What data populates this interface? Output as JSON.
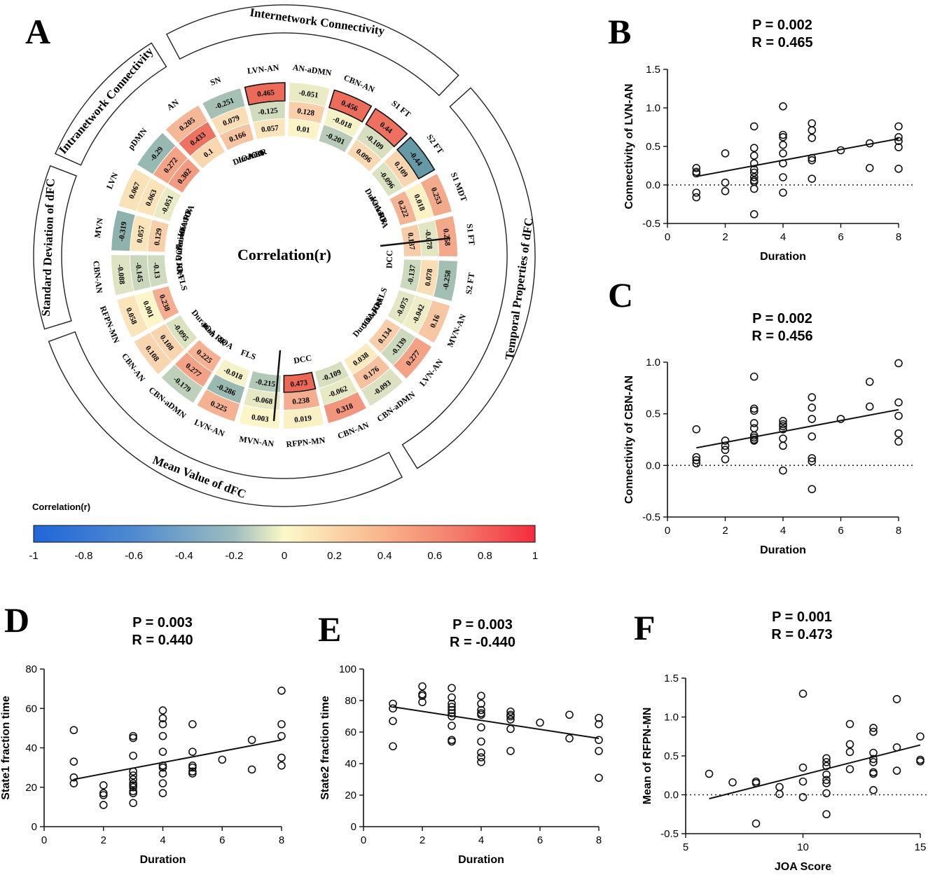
{
  "panel_a": {
    "letter": "A",
    "center_title": "Correlation(r)",
    "sectors": [
      "Internetwork Connectivity",
      "Temporal Properties of dFC",
      "Mean Value of dFC",
      "Standard Deviation of dFC",
      "Intranetwork Connectivity"
    ],
    "rows": [
      "Duration",
      "JOA RR",
      "JOA"
    ],
    "columns": [
      {
        "label": "LVN-AN",
        "values": [
          0.465,
          -0.125,
          0.057
        ]
      },
      {
        "label": "AN-aDMN",
        "values": [
          -0.051,
          0.128,
          0.01
        ]
      },
      {
        "label": "CBN-AN",
        "values": [
          0.456,
          -0.018,
          -0.201
        ]
      },
      {
        "label": "S1 FT",
        "values": [
          0.44,
          -0.109,
          0.096
        ]
      },
      {
        "label": "S2 FT",
        "values": [
          -0.44,
          0.109,
          -0.096
        ]
      },
      {
        "label": "S1 MDT",
        "values": [
          0.253,
          0.018,
          0.222
        ]
      },
      {
        "label": "S1 FT",
        "values": [
          0.258,
          -0.078,
          0.137
        ]
      },
      {
        "label": "S2 FT",
        "values": [
          -0.258,
          0.078,
          -0.137
        ]
      },
      {
        "label": "MVN-AN",
        "values": [
          0.16,
          -0.042,
          -0.075
        ]
      },
      {
        "label": "LVN-AN",
        "values": [
          0.277,
          -0.139,
          0.134
        ]
      },
      {
        "label": "CBN-aDMN",
        "values": [
          -0.093,
          0.176,
          0.038
        ]
      },
      {
        "label": "CBN-AN",
        "values": [
          0.318,
          -0.062,
          -0.109
        ]
      },
      {
        "label": "RFPN-MN",
        "values": [
          0.019,
          0.238,
          0.473
        ]
      },
      {
        "label": "MVN-AN",
        "values": [
          0.003,
          -0.068,
          -0.215
        ]
      },
      {
        "label": "LVN-AN",
        "values": [
          0.225,
          -0.286,
          -0.018
        ]
      },
      {
        "label": "CBN-aDMN",
        "values": [
          -0.179,
          0.277,
          0.225
        ]
      },
      {
        "label": "CBN-AN",
        "values": [
          0.108,
          0.108,
          -0.095
        ]
      },
      {
        "label": "RFPN-MN",
        "values": [
          0.058,
          0.001,
          0.238
        ]
      },
      {
        "label": "CBN-AN",
        "values": [
          -0.088,
          -0.145,
          -0.13
        ]
      },
      {
        "label": "MVN",
        "values": [
          -0.319,
          0.057,
          0.129
        ]
      },
      {
        "label": "LVN",
        "values": [
          0.067,
          0.063,
          -0.051
        ]
      },
      {
        "label": "pDMN",
        "values": [
          -0.29,
          0.272,
          0.302
        ]
      },
      {
        "label": "AN",
        "values": [
          0.205,
          0.433,
          0.1
        ]
      },
      {
        "label": "SN",
        "values": [
          -0.251,
          0.079,
          0.166
        ]
      }
    ],
    "inner_labels": [
      "Duration",
      "JOA RR",
      "JOA",
      "Duration",
      "JOA RR",
      "JOA",
      "DCC",
      "FLS",
      "JOA",
      "JOA RR",
      "Duration",
      "DCC",
      "FLS",
      "JOA",
      "JOA RR",
      "Duration",
      "FLS",
      "JOA",
      "JOA RR",
      "Duration",
      "Duration",
      "JOA RR",
      "JOA"
    ],
    "colorbar": {
      "title": "Correlation(r)",
      "ticks": [
        "-1",
        "-0.8",
        "-0.6",
        "-0.4",
        "-0.2",
        "0",
        "0.2",
        "0.4",
        "0.6",
        "0.8",
        "1"
      ]
    }
  },
  "chart_data": [
    {
      "panel": "B",
      "type": "scatter",
      "p_text": "P = 0.002",
      "r_text": "R = 0.465",
      "xlabel": "Duration",
      "ylabel": "Connectivity of LVN-AN",
      "xlim": [
        0,
        8
      ],
      "ylim": [
        -0.5,
        1.5
      ],
      "xticks": [
        "0",
        "2",
        "4",
        "6",
        "8"
      ],
      "yticks": [
        "-0.5",
        "0.0",
        "0.5",
        "1.0",
        "1.5"
      ],
      "x": [
        1,
        1,
        1,
        1,
        1,
        2,
        2,
        2,
        3,
        3,
        3,
        3,
        3,
        3,
        3,
        3,
        3,
        3,
        3,
        4,
        4,
        4,
        4,
        4,
        4,
        4,
        4,
        5,
        5,
        5,
        5,
        5,
        5,
        6,
        7,
        7,
        8,
        8,
        8,
        8,
        8
      ],
      "y": [
        0.22,
        0.17,
        0.15,
        -0.1,
        -0.16,
        0.41,
        0.03,
        -0.08,
        0.76,
        0.48,
        0.38,
        0.28,
        0.2,
        0.16,
        0.1,
        0.06,
        0.04,
        -0.05,
        -0.38,
        1.02,
        0.65,
        0.62,
        0.52,
        0.41,
        0.28,
        0.1,
        -0.1,
        0.8,
        0.71,
        0.61,
        0.35,
        0.32,
        0.08,
        0.45,
        0.54,
        0.22,
        0.76,
        0.62,
        0.57,
        0.49,
        0.21
      ],
      "fit": {
        "x": [
          1,
          8
        ],
        "y": [
          0.11,
          0.6
        ]
      }
    },
    {
      "panel": "C",
      "type": "scatter",
      "p_text": "P = 0.002",
      "r_text": "R = 0.456",
      "xlabel": "Duration",
      "ylabel": "Connectivity of CBN-AN",
      "xlim": [
        0,
        8
      ],
      "ylim": [
        -0.5,
        1.0
      ],
      "xticks": [
        "0",
        "2",
        "4",
        "6",
        "8"
      ],
      "yticks": [
        "-0.5",
        "0.0",
        "0.5",
        "1.0"
      ],
      "x": [
        1,
        1,
        1,
        1,
        2,
        2,
        2,
        2,
        3,
        3,
        3,
        3,
        3,
        3,
        3,
        3,
        3,
        4,
        4,
        4,
        4,
        4,
        4,
        4,
        5,
        5,
        5,
        5,
        5,
        5,
        5,
        6,
        7,
        7,
        8,
        8,
        8,
        8,
        8
      ],
      "y": [
        0.35,
        0.08,
        0.05,
        0.02,
        0.24,
        0.19,
        0.15,
        0.06,
        0.86,
        0.55,
        0.53,
        0.41,
        0.36,
        0.29,
        0.27,
        0.25,
        0.24,
        0.43,
        0.4,
        0.38,
        0.35,
        0.26,
        0.19,
        -0.05,
        0.66,
        0.56,
        0.45,
        0.28,
        0.07,
        0.04,
        -0.23,
        0.45,
        0.81,
        0.57,
        0.99,
        0.61,
        0.48,
        0.31,
        0.23
      ],
      "fit": {
        "x": [
          1,
          8
        ],
        "y": [
          0.17,
          0.54
        ]
      }
    },
    {
      "panel": "D",
      "type": "scatter",
      "p_text": "P = 0.003",
      "r_text": "R = 0.440",
      "xlabel": "Duration",
      "ylabel": "State1 fraction time",
      "xlim": [
        0,
        8
      ],
      "ylim": [
        0,
        80
      ],
      "xticks": [
        "0",
        "2",
        "4",
        "6",
        "8"
      ],
      "yticks": [
        "0",
        "20",
        "40",
        "60",
        "80"
      ],
      "x": [
        1,
        1,
        1,
        1,
        2,
        2,
        2,
        2,
        3,
        3,
        3,
        3,
        3,
        3,
        3,
        3,
        3,
        3,
        3,
        3,
        4,
        4,
        4,
        4,
        4,
        4,
        4,
        4,
        4,
        4,
        5,
        5,
        5,
        5,
        5,
        5,
        6,
        7,
        7,
        8,
        8,
        8,
        8,
        8
      ],
      "y": [
        49,
        33,
        25,
        22,
        21,
        17,
        16,
        11,
        46,
        45,
        36,
        28,
        26,
        24,
        22,
        21,
        20,
        18,
        17,
        12,
        59,
        55,
        52,
        46,
        38,
        31,
        30,
        27,
        22,
        17,
        52,
        38,
        31,
        30,
        28,
        27,
        34,
        44,
        29,
        69,
        52,
        46,
        35,
        31
      ],
      "fit": {
        "x": [
          1,
          8
        ],
        "y": [
          24,
          44
        ]
      }
    },
    {
      "panel": "E",
      "type": "scatter",
      "p_text": "P = 0.003",
      "r_text": "R = -0.440",
      "xlabel": "Duration",
      "ylabel": "State2 fraction time",
      "xlim": [
        0,
        8
      ],
      "ylim": [
        0,
        100
      ],
      "xticks": [
        "0",
        "2",
        "4",
        "6",
        "8"
      ],
      "yticks": [
        "0",
        "20",
        "40",
        "60",
        "80",
        "100"
      ],
      "x": [
        1,
        1,
        1,
        1,
        2,
        2,
        2,
        2,
        3,
        3,
        3,
        3,
        3,
        3,
        3,
        3,
        3,
        3,
        4,
        4,
        4,
        4,
        4,
        4,
        4,
        4,
        4,
        4,
        5,
        5,
        5,
        5,
        5,
        5,
        6,
        7,
        7,
        8,
        8,
        8,
        8,
        8
      ],
      "y": [
        78,
        75,
        67,
        51,
        89,
        84,
        83,
        79,
        88,
        82,
        78,
        76,
        74,
        72,
        70,
        64,
        55,
        54,
        83,
        78,
        74,
        72,
        71,
        63,
        54,
        47,
        44,
        41,
        73,
        71,
        70,
        68,
        62,
        48,
        66,
        71,
        56,
        69,
        65,
        55,
        48,
        31
      ],
      "fit": {
        "x": [
          1,
          8
        ],
        "y": [
          76,
          56
        ]
      }
    },
    {
      "panel": "F",
      "type": "scatter",
      "p_text": "P = 0.001",
      "r_text": "R = 0.473",
      "xlabel": "JOA Score",
      "ylabel": "Mean of RFPN-MN",
      "xlim": [
        5,
        15
      ],
      "ylim": [
        -0.5,
        1.5
      ],
      "xticks": [
        "5",
        "10",
        "15"
      ],
      "yticks": [
        "-0.5",
        "0.0",
        "0.5",
        "1.0",
        "1.5"
      ],
      "x": [
        6,
        7,
        8,
        8,
        8,
        9,
        9,
        10,
        10,
        10,
        10,
        11,
        11,
        11,
        11,
        11,
        11,
        11,
        11,
        12,
        12,
        12,
        12,
        13,
        13,
        13,
        13,
        13,
        13,
        13,
        13,
        14,
        14,
        14,
        15,
        15,
        15
      ],
      "y": [
        0.27,
        0.16,
        0.17,
        0.15,
        -0.37,
        0.1,
        0.01,
        1.3,
        0.35,
        0.17,
        -0.03,
        0.47,
        0.42,
        0.37,
        0.26,
        0.19,
        0.15,
        0.02,
        -0.25,
        0.91,
        0.65,
        0.55,
        0.33,
        0.86,
        0.81,
        0.54,
        0.46,
        0.42,
        0.29,
        0.27,
        0.06,
        1.23,
        0.61,
        0.31,
        0.75,
        0.45,
        0.43
      ],
      "fit": {
        "x": [
          6,
          15
        ],
        "y": [
          -0.05,
          0.64
        ]
      }
    }
  ]
}
